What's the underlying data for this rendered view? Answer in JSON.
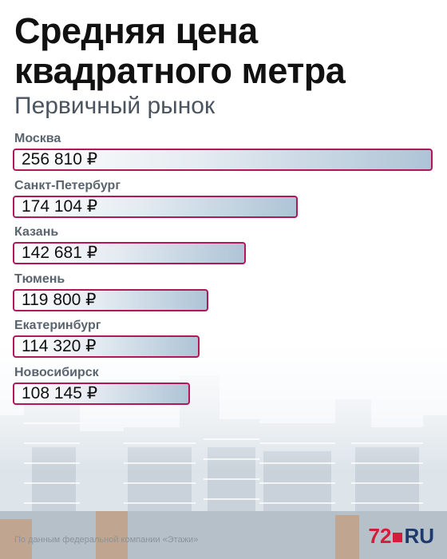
{
  "title_line1": "Средняя цена",
  "title_line2": "квадратного метра",
  "subtitle": "Первичный рынок",
  "chart_data": {
    "type": "bar",
    "orientation": "horizontal",
    "title": "Средняя цена квадратного метра",
    "subtitle": "Первичный рынок",
    "categories": [
      "Москва",
      "Санкт-Петербург",
      "Казань",
      "Тюмень",
      "Екатеринбург",
      "Новосибирск"
    ],
    "values": [
      256810,
      174104,
      142681,
      119800,
      114320,
      108145
    ],
    "value_labels": [
      "256 810 ₽",
      "174 104 ₽",
      "142 681 ₽",
      "119 800 ₽",
      "114 320 ₽",
      "108 145 ₽"
    ],
    "bar_border_color": "#b0185a",
    "bar_fill_color": "#aec4d6"
  },
  "footnote": "По данным федеральной компании «Этажи»",
  "logo": {
    "number": "72",
    "suffix": "RU",
    "color_number": "#d21e3a",
    "color_suffix": "#1d3a6e"
  },
  "background_image": "city-skyline"
}
